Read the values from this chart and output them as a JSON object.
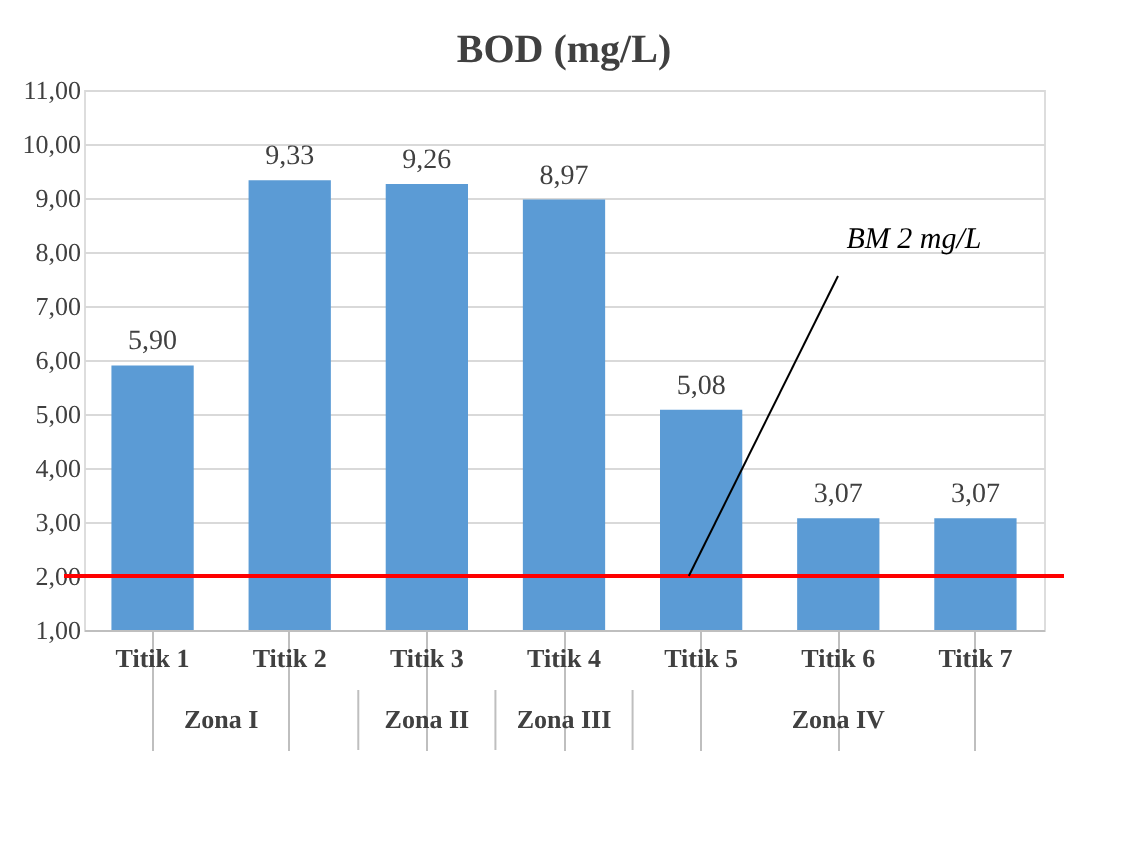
{
  "chart_data": {
    "type": "bar",
    "title": "BOD (mg/L)",
    "categories": [
      "Titik 1",
      "Titik 2",
      "Titik 3",
      "Titik 4",
      "Titik 5",
      "Titik 6",
      "Titik 7"
    ],
    "values": [
      5.9,
      9.33,
      9.26,
      8.97,
      5.08,
      3.07,
      3.07
    ],
    "value_labels": [
      "5,90",
      "9,33",
      "9,26",
      "8,97",
      "5,08",
      "3,07",
      "3,07"
    ],
    "color": "#5b9bd5",
    "ylim": [
      1,
      11
    ],
    "yticks": [
      {
        "value": 1,
        "label": "1,00"
      },
      {
        "value": 2,
        "label": "2,00"
      },
      {
        "value": 3,
        "label": "3,00"
      },
      {
        "value": 4,
        "label": "4,00"
      },
      {
        "value": 5,
        "label": "5,00"
      },
      {
        "value": 6,
        "label": "6,00"
      },
      {
        "value": 7,
        "label": "7,00"
      },
      {
        "value": 8,
        "label": "8,00"
      },
      {
        "value": 9,
        "label": "9,00"
      },
      {
        "value": 10,
        "label": "10,00"
      },
      {
        "value": 11,
        "label": "11,00"
      }
    ],
    "grid": "y",
    "ref_lines": [
      {
        "axis": "y",
        "value": 2,
        "label": "BM 2 mg/L",
        "color": "#ff0000"
      }
    ],
    "annotations": [
      "Zona I",
      "Zona II",
      "Zona III",
      "Zona IV"
    ]
  }
}
